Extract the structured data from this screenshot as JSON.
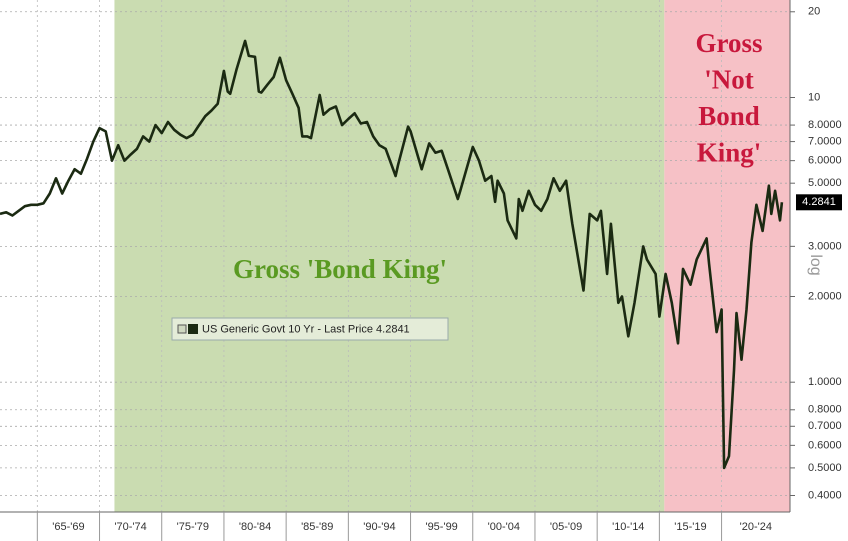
{
  "chart_data": {
    "type": "line",
    "log_y": true,
    "grid": true,
    "annotations": {
      "green": "Gross 'Bond King'",
      "red_lines": [
        "Gross",
        "'Not",
        "Bond",
        "King'"
      ]
    },
    "y_axis_label": "log",
    "regions": [
      {
        "from": 1971.2,
        "to": 2015.4,
        "color": "#cadcb1"
      },
      {
        "from": 2015.4,
        "to": 2025.5,
        "color": "#f6c1c6"
      }
    ],
    "xlim": [
      1962,
      2025.5
    ],
    "xticks": [
      {
        "value": 1965,
        "label": "'65-'69"
      },
      {
        "value": 1970,
        "label": "'70-'74"
      },
      {
        "value": 1975,
        "label": "'75-'79"
      },
      {
        "value": 1980,
        "label": "'80-'84"
      },
      {
        "value": 1985,
        "label": "'85-'89"
      },
      {
        "value": 1990,
        "label": "'90-'94"
      },
      {
        "value": 1995,
        "label": "'95-'99"
      },
      {
        "value": 2000,
        "label": "'00-'04"
      },
      {
        "value": 2005,
        "label": "'05-'09"
      },
      {
        "value": 2010,
        "label": "'10-'14"
      },
      {
        "value": 2015,
        "label": "'15-'19"
      },
      {
        "value": 2020,
        "label": "'20-'24"
      }
    ],
    "ylim": [
      0.35,
      22
    ],
    "yticks": [
      20,
      10,
      {
        "value": 8,
        "label": "8.0000"
      },
      {
        "value": 7,
        "label": "7.0000"
      },
      {
        "value": 6,
        "label": "6.0000"
      },
      {
        "value": 5,
        "label": "5.0000"
      },
      {
        "value": 3,
        "label": "3.0000"
      },
      {
        "value": 2,
        "label": "2.0000"
      },
      {
        "value": 1,
        "label": "1.0000"
      },
      {
        "value": 0.8,
        "label": "0.8000"
      },
      {
        "value": 0.7,
        "label": "0.7000"
      },
      {
        "value": 0.6,
        "label": "0.6000"
      },
      {
        "value": 0.5,
        "label": "0.5000"
      },
      {
        "value": 0.4,
        "label": "0.4000"
      }
    ],
    "x": [
      1962,
      1962.5,
      1963,
      1963.5,
      1964,
      1964.5,
      1965,
      1965.5,
      1966,
      1966.5,
      1967,
      1967.5,
      1968,
      1968.5,
      1969,
      1969.5,
      1970,
      1970.5,
      1971,
      1971.5,
      1972,
      1972.5,
      1973,
      1973.5,
      1974,
      1974.5,
      1975,
      1975.5,
      1976,
      1976.5,
      1977,
      1977.5,
      1978,
      1978.5,
      1979,
      1979.5,
      1980,
      1980.3,
      1980.5,
      1981,
      1981.7,
      1982,
      1982.5,
      1982.8,
      1983,
      1983.5,
      1984,
      1984.5,
      1985,
      1985.5,
      1986,
      1986.3,
      1986.7,
      1987,
      1987.7,
      1988,
      1988.5,
      1989,
      1989.5,
      1990,
      1990.5,
      1991,
      1991.5,
      1992,
      1992.5,
      1993,
      1993.8,
      1994,
      1994.8,
      1995,
      1995.9,
      1996.5,
      1997,
      1997.5,
      1998,
      1998.8,
      1999,
      2000,
      2000.5,
      2001,
      2001.5,
      2001.8,
      2002,
      2002.5,
      2002.8,
      2003.5,
      2003.7,
      2004,
      2004.5,
      2005,
      2005.5,
      2006,
      2006.5,
      2007,
      2007.5,
      2008,
      2008.9,
      2009.4,
      2010,
      2010.3,
      2010.8,
      2011.1,
      2011.7,
      2012,
      2012.5,
      2013,
      2013.7,
      2014,
      2014.7,
      2015,
      2015.5,
      2016,
      2016.5,
      2016.9,
      2017.5,
      2018,
      2018.8,
      2019,
      2019.6,
      2020,
      2020.2,
      2020.6,
      2021,
      2021.2,
      2021.6,
      2022,
      2022.4,
      2022.8,
      2023.3,
      2023.8,
      2024,
      2024.3,
      2024.7,
      2024.85
    ],
    "series": [
      {
        "name": "US Generic Govt 10 Yr - Last Price 4.2841",
        "color": "#1b2a12",
        "values": [
          3.9,
          3.95,
          3.85,
          4.0,
          4.15,
          4.2,
          4.2,
          4.25,
          4.6,
          5.2,
          4.6,
          5.1,
          5.6,
          5.4,
          6.1,
          7.0,
          7.8,
          7.6,
          6.0,
          6.8,
          6.0,
          6.3,
          6.6,
          7.3,
          7.0,
          8.0,
          7.5,
          8.2,
          7.7,
          7.4,
          7.2,
          7.4,
          8.0,
          8.6,
          9.0,
          9.5,
          12.4,
          10.5,
          10.3,
          12.5,
          15.8,
          14.0,
          13.9,
          10.5,
          10.4,
          11.1,
          11.8,
          13.8,
          11.5,
          10.3,
          9.2,
          7.3,
          7.3,
          7.2,
          10.2,
          8.7,
          9.1,
          9.3,
          8.0,
          8.4,
          8.8,
          8.1,
          8.2,
          7.3,
          6.8,
          6.6,
          5.3,
          5.8,
          7.9,
          7.6,
          5.6,
          6.9,
          6.4,
          6.5,
          5.6,
          4.4,
          4.7,
          6.7,
          6.0,
          5.1,
          5.3,
          4.3,
          5.1,
          4.6,
          3.7,
          3.2,
          4.4,
          4.0,
          4.7,
          4.2,
          4.0,
          4.4,
          5.2,
          4.7,
          5.1,
          3.6,
          2.1,
          3.9,
          3.7,
          4.0,
          2.4,
          3.6,
          1.9,
          2.0,
          1.45,
          1.9,
          3.0,
          2.7,
          2.4,
          1.7,
          2.4,
          1.9,
          1.37,
          2.5,
          2.2,
          2.7,
          3.2,
          2.6,
          1.5,
          1.8,
          0.5,
          0.55,
          1.1,
          1.75,
          1.2,
          1.8,
          3.1,
          4.2,
          3.4,
          4.9,
          3.9,
          4.7,
          3.7,
          4.2841
        ]
      }
    ]
  }
}
